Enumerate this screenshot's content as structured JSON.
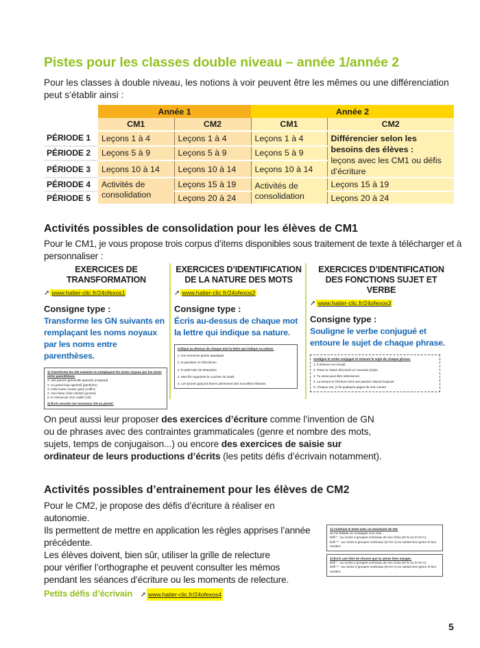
{
  "title": "Pistes pour les classes double niveau – année 1/année 2",
  "intro": "Pour les classes à double niveau, les notions à voir peuvent être les mêmes ou une différenciation peut s’établir ainsi :",
  "table": {
    "year1": "Année 1",
    "year2": "Année 2",
    "cm1": "CM1",
    "cm2": "CM2",
    "periods": [
      "PÉRIODE 1",
      "PÉRIODE 2",
      "PÉRIODE 3",
      "PÉRIODE 4",
      "PÉRIODE 5"
    ],
    "y1cm1": [
      "Leçons 1 à 4",
      "Leçons 5 à 9",
      "Leçons 10 à 14",
      "Activités de consolidation"
    ],
    "y1cm2": [
      "Leçons 1 à 4",
      "Leçons 5 à 9",
      "Leçons 10 à 14",
      "Leçons 15 à 19",
      "Leçons 20 à 24"
    ],
    "y2cm1": [
      "Leçons 1 à 4",
      "Leçons 5 à 9",
      "Leçons 10 à 14",
      "Activités de consolidation"
    ],
    "y2cm2_bold": "Différencier selon les besoins des élèves :",
    "y2cm2_text": "leçons avec les CM1 ou défis d’écriture",
    "y2cm2": [
      "Leçons 15 à 19",
      "Leçons 20 à 24"
    ]
  },
  "section1": {
    "heading": "Activités possibles de consolidation pour les élèves de CM1",
    "intro": "Pour le CM1, je vous propose trois corpus d’items disponibles sous traitement de texte à télécharger et à personnaliser :",
    "columns": [
      {
        "title": "EXERCICES DE TRANSFORMATION",
        "link": "www.hatier-clic.fr/24ofexos1",
        "consigne_label": "Consigne type :",
        "consigne": "Transforme les GN suivants en remplaçant les noms noyaux par les noms entre parenthèses.",
        "thumb_title": "1) Transforme les GN suivants en remplaçant les noms noyaux par les noms entre parenthèses.",
        "thumb_items": [
          "1.  une pauvre grenouille apeurée (crapaud)",
          "2.  ce grand loup agressif (panthère)",
          "3.  cette loutre rousse grise (coffre)",
          "4.  mon beau chien dressé (jument)",
          "5.  le minuscule clou rouillé (clé)"
        ],
        "thumb_footer": "2) Écris ensuite ces nouveaux GN au pluriel."
      },
      {
        "title": "EXERCICES D’IDENTIFICATION DE LA NATURE DES MOTS",
        "link": "www.hatier-clic.fr/24ofexos2",
        "consigne_label": "Consigne type :",
        "consigne": "Écris au-dessus de chaque mot la lettre qui indique sa nature.",
        "thumb_title": "Indique au-dessus de chaque mot la lettre qui indique sa nature.",
        "thumb_items": [
          "1.  son immense plante aquatique",
          "2.  le plombier et l’électricien",
          "3.  le petit train de Marquèze",
          "4.  Mes fils regardent le coucher de soleil.",
          "5.  Les jeunes garçons lisent calmement des nouvelles histoires."
        ],
        "thumb_footer": ""
      },
      {
        "title": "EXERCICES D’IDENTIFICATION DES FONCTIONS SUJET ET VERBE",
        "link": "www.hatier-clic.fr/24ofexos3",
        "consigne_label": "Consigne type :",
        "consigne": "Souligne le verbe conjugué et entoure le sujet de chaque phrase.",
        "thumb_title": "Souligne le verbe conjugué et entoure le sujet de chaque phrase.",
        "thumb_items": [
          "1.  Il observe ton travail.",
          "2.  Toute la classe découvrit un nouveau projet.",
          "3.  Tu seras peut-être sélectionné.",
          "4.  La lecture et l’écriture sont une passion depuis toujours.",
          "5.  Chaque soir, je lis quelques pages de mon roman."
        ],
        "thumb_footer": ""
      }
    ],
    "para": [
      {
        "t": "On peut aussi leur proposer ",
        "b": false
      },
      {
        "t": "des exercices d’écriture",
        "b": true
      },
      {
        "t": " comme l’invention de GN ou de phrases avec des contraintes grammaticales (genre et nombre des mots, sujets, temps de conjugaison...) ou encore ",
        "b": false
      },
      {
        "t": "des exercices de saisie sur ordinateur de leurs productions d’écrits",
        "b": true
      },
      {
        "t": " (les petits défis d’écrivain notamment).",
        "b": false
      }
    ]
  },
  "section2": {
    "heading": "Activités possibles d’entrainement pour les élèves de CM2",
    "lines": [
      "Pour le CM2, je propose des défis d’écriture à réaliser en autonomie.",
      "Ils permettent de mettre en application les règles apprises l’année précédente.",
      "Les élèves doivent, bien sûr, utiliser la grille de relecture",
      "pour vérifier l’orthographe et peuvent consulter les mémos",
      "pendant les séances d’écriture ou les moments de relecture."
    ],
    "link_label": "Petits défis d’écrivain",
    "link": "www.hatier-clic.fr/24ofexos4",
    "thumb": [
      {
        "title": "1) Continue le texte avec un maximum de GN.",
        "sub": "Je me balade en montagne et je vois…",
        "l1": "Défi * : au moins 4 groupes nominaux de son choix (D+N ou D+N+A).",
        "l2": "Défi ** : au moins 6 groupes nominaux (D+N+A) en variant leur genre et leur nombre."
      },
      {
        "title": "2) Écris une liste de choses que tu aimes bien manger.",
        "sub": "",
        "l1": "Défi * : au moins 4 groupes nominaux de son choix (D+N ou D+N+A).",
        "l2": "Défi ** : au moins 6 groupes nominaux (D+N+A) en variant leur genre et leur nombre."
      }
    ]
  },
  "page_number": "5",
  "colors": {
    "title_green": "#93c01f",
    "year1": "#f7b01c",
    "year2": "#ffd500",
    "consigne_blue": "#1767b3",
    "link_highlight": "#fff200"
  }
}
